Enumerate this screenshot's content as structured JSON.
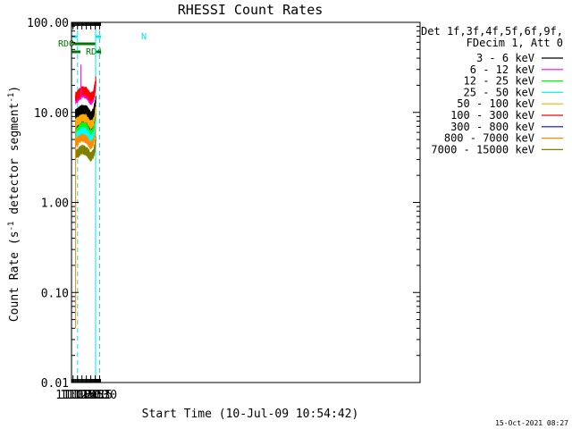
{
  "chart_data": {
    "type": "line",
    "title": "RHESSI Count Rates",
    "xlabel": "Start Time (10-Jul-09 10:54:42)",
    "ylabel_main": "Count Rate (s",
    "ylabel_sup": "-1",
    "ylabel_rest": " detector segment",
    "ylabel_sup2": "-1",
    "ylabel_close": ")",
    "yscale": "log",
    "ylim": [
      0.01,
      100
    ],
    "xlim_minutes": [
      654.7,
      1834.5
    ],
    "x_ticks": [
      {
        "label": "11:00",
        "min": 660
      },
      {
        "label": "11:15",
        "min": 675
      },
      {
        "label": "11:30",
        "min": 690
      },
      {
        "label": "11:45",
        "min": 705
      },
      {
        "label": "12:00",
        "min": 720
      },
      {
        "label": "12:15",
        "min": 735
      },
      {
        "label": "12:30",
        "min": 750
      }
    ],
    "y_ticks": [
      {
        "label": "100.00",
        "v": 100
      },
      {
        "label": "10.00",
        "v": 10
      },
      {
        "label": "1.00",
        "v": 1
      },
      {
        "label": "0.10",
        "v": 0.1
      },
      {
        "label": "0.01",
        "v": 0.01
      }
    ],
    "legend_header": [
      "Det 1f,3f,4f,5f,6f,9f,",
      "FDecim 1, Att 0"
    ],
    "legend_placement": "right",
    "series": [
      {
        "name": "3 - 6 keV",
        "color": "#000000",
        "x": [
          668.4,
          675,
          690,
          705,
          720,
          730,
          735,
          737
        ],
        "y": [
          9.6,
          10.0,
          10.8,
          10.6,
          9.0,
          10.0,
          12.5,
          14.0
        ]
      },
      {
        "name": "6 - 12 keV",
        "color": "#ff00ff",
        "x": [
          668.4,
          675,
          690,
          705,
          720,
          730,
          735,
          737
        ],
        "y": [
          13.8,
          14.5,
          16.5,
          16.0,
          13.5,
          15.0,
          19.0,
          21.0
        ]
      },
      {
        "name": "12 - 25 keV",
        "color": "#00ff00",
        "x": [
          668.4,
          675,
          690,
          705,
          720,
          730,
          735,
          737
        ],
        "y": [
          6.8,
          7.0,
          7.8,
          7.5,
          6.3,
          7.0,
          8.8,
          9.5
        ]
      },
      {
        "name": "25 - 50 keV",
        "color": "#00ffff",
        "x": [
          668.4,
          675,
          690,
          705,
          720,
          730,
          735,
          737
        ],
        "y": [
          5.8,
          6.0,
          6.6,
          6.3,
          5.3,
          6.0,
          7.5,
          8.2
        ]
      },
      {
        "name": "50 - 100 keV",
        "color": "#ffaa00",
        "x": [
          668.4,
          675,
          690,
          705,
          720,
          730,
          735,
          737
        ],
        "y": [
          7.6,
          8.0,
          8.8,
          8.6,
          7.2,
          8.0,
          10.0,
          11.0
        ]
      },
      {
        "name": "100 - 300 keV",
        "color": "#ff0000",
        "x": [
          668.4,
          675,
          690,
          705,
          720,
          730,
          735,
          737
        ],
        "y": [
          14.8,
          15.5,
          17.5,
          17.0,
          14.5,
          16.0,
          20.0,
          23.0
        ]
      },
      {
        "name": "300 - 800 keV",
        "color": "#0000ff",
        "x": [
          668.4,
          675,
          690,
          705,
          720,
          730,
          735,
          737
        ],
        "y": [
          7.4,
          7.8,
          8.8,
          8.5,
          7.0,
          7.9,
          9.8,
          11.0
        ]
      },
      {
        "name": "800 - 7000 keV",
        "color": "#ff8c00",
        "x": [
          668.4,
          675,
          690,
          705,
          720,
          730,
          735,
          737
        ],
        "y": [
          4.6,
          4.8,
          5.4,
          5.1,
          4.3,
          4.9,
          6.2,
          7.0
        ]
      },
      {
        "name": "7000 - 15000 keV",
        "color": "#808000",
        "x": [
          668.4,
          675,
          690,
          705,
          720,
          730,
          735,
          737
        ],
        "y": [
          3.4,
          3.5,
          3.9,
          3.7,
          3.2,
          3.5,
          4.3,
          5.0
        ]
      }
    ],
    "annotations": [
      {
        "text": "N",
        "color": "#00e5ee"
      },
      {
        "text": "RD0",
        "color": "#007700"
      },
      {
        "text": "RD4",
        "color": "#007700"
      }
    ],
    "footer_date": "15-Oct-2021 08:27"
  },
  "colors": {
    "saa_flag": "#00e5ee",
    "decimation_flag": "#007700"
  }
}
